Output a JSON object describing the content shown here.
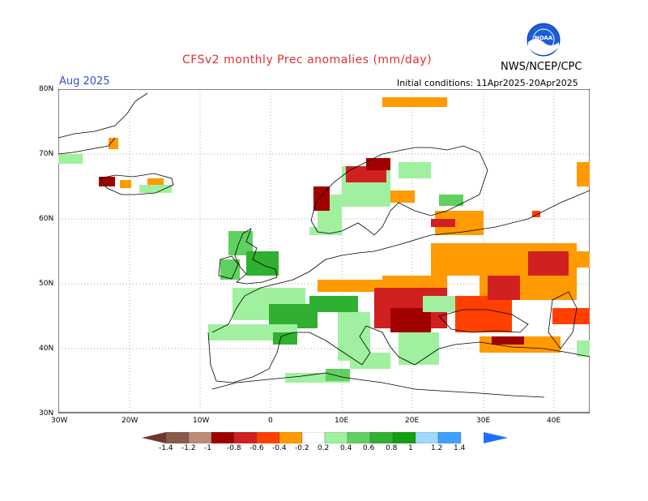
{
  "header": {
    "title": "CFSv2 monthly Prec anomalies (mm/day)",
    "agency": "NWS/NCEP/CPC",
    "month": "Aug 2025",
    "initial_conditions": "Initial conditions: 11Apr2025-20Apr2025",
    "logo_text": "NOAA"
  },
  "axes": {
    "lat_labels": [
      "80N",
      "70N",
      "60N",
      "50N",
      "40N",
      "30N"
    ],
    "lon_labels": [
      "30W",
      "20W",
      "10W",
      "0",
      "10E",
      "20E",
      "30E",
      "40E"
    ]
  },
  "colorbar": {
    "labels": [
      "-1.4",
      "-1.2",
      "-1",
      "-0.8",
      "-0.6",
      "-0.4",
      "-0.2",
      "0.2",
      "0.4",
      "0.6",
      "0.8",
      "1",
      "1.2",
      "1.4"
    ],
    "colors": [
      "#6b3a2e",
      "#8a5a4a",
      "#c08a7a",
      "#a00000",
      "#d02020",
      "#ff4000",
      "#ff9a00",
      "#ffffff",
      "#a0f0a0",
      "#60d060",
      "#30b030",
      "#10a010",
      "#a0d8ff",
      "#40a0ff",
      "#2070ff"
    ]
  }
}
